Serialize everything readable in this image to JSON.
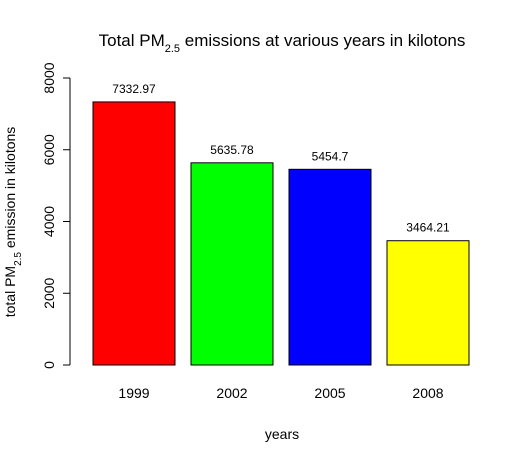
{
  "chart_data": {
    "type": "bar",
    "title": {
      "prefix": "Total PM",
      "subscript": "2.5",
      "suffix": " emissions at various years in kilotons"
    },
    "xlabel": "years",
    "ylabel": {
      "prefix": "total PM",
      "subscript": "2.5",
      "suffix": " emission in kilotons"
    },
    "categories": [
      "1999",
      "2002",
      "2005",
      "2008"
    ],
    "values": [
      7332.97,
      5635.78,
      5454.7,
      3464.21
    ],
    "data_labels": [
      "7332.97",
      "5635.78",
      "5454.7",
      "3464.21"
    ],
    "colors": [
      "#ff0000",
      "#00ff00",
      "#0000ff",
      "#ffff00"
    ],
    "ylim": [
      0,
      8000
    ],
    "yticks": [
      0,
      2000,
      4000,
      6000,
      8000
    ],
    "ytick_labels": [
      "0",
      "2000",
      "4000",
      "6000",
      "8000"
    ],
    "grid": false,
    "legend": "none"
  }
}
